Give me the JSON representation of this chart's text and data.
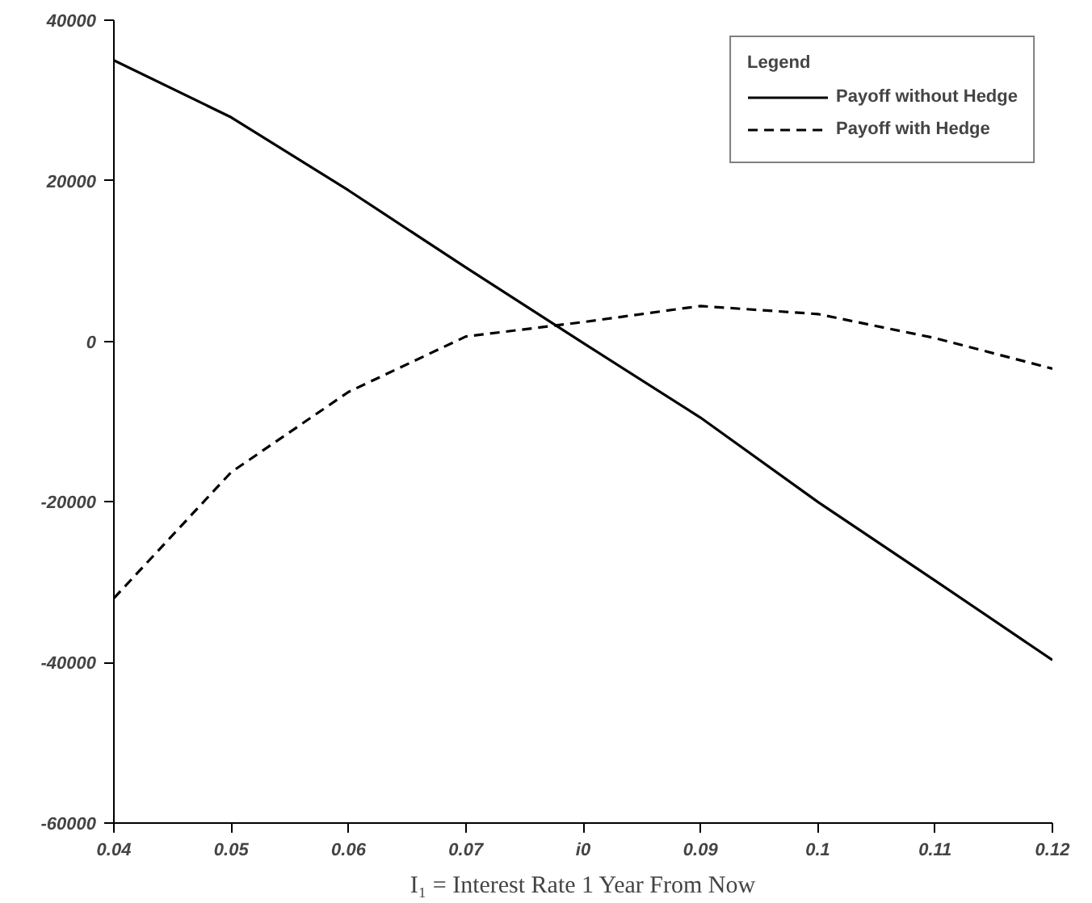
{
  "chart_data": {
    "type": "line",
    "xlabel": "I₁ = Interest Rate 1 Year From Now",
    "legend_title": "Legend",
    "legend": "top right",
    "grid": false,
    "x": [
      0.04,
      0.05,
      0.06,
      0.07,
      0.08,
      0.09,
      0.1,
      0.11,
      0.12
    ],
    "series": [
      {
        "name": "Payoff without Hedge",
        "color": "#000000",
        "line_style": "solid",
        "values": [
          35000,
          27900,
          18800,
          9200,
          -200,
          -9500,
          -20000,
          -29800,
          -39700
        ]
      },
      {
        "name": "Payoff with Hedge",
        "color": "#000000",
        "line_style": "dashed",
        "values": [
          -32000,
          -16300,
          -6300,
          600,
          2400,
          4400,
          3400,
          400,
          -3400
        ]
      }
    ],
    "xlim": [
      0.04,
      0.12
    ],
    "xticks": [
      0.04,
      0.05,
      0.06,
      0.07,
      {
        "value": 0.08,
        "label": "i0"
      },
      0.09,
      0.1,
      0.11,
      0.12
    ],
    "ylim": [
      -60000,
      40000
    ],
    "yticks": [
      -60000,
      -40000,
      -20000,
      0,
      20000,
      40000
    ]
  }
}
